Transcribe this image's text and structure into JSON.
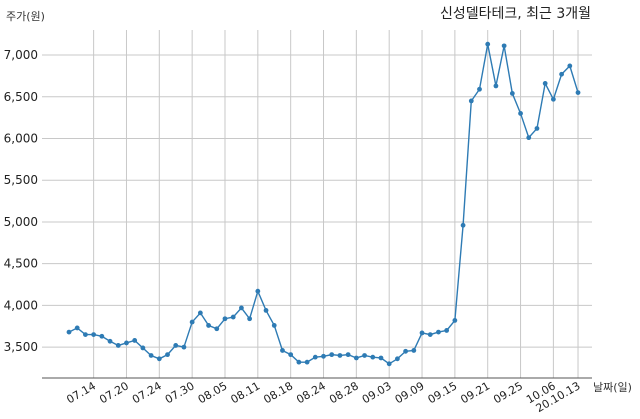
{
  "chart_data": {
    "type": "line",
    "title": "신성델타테크, 최근 3개월",
    "ylabel": "주가(원)",
    "xlabel": "날짜(일)",
    "ylim": [
      3130,
      7300
    ],
    "yticks": [
      3500,
      4000,
      4500,
      5000,
      5500,
      6000,
      6500,
      7000
    ],
    "ytick_labels": [
      "3,500",
      "4,000",
      "4,500",
      "5,000",
      "5,500",
      "6,000",
      "6,500",
      "7,000"
    ],
    "xtick_indices": [
      3,
      7,
      11,
      15,
      19,
      23,
      27,
      31,
      35,
      39,
      43,
      47,
      51,
      55,
      59
    ],
    "xtick_labels": [
      "07.14",
      "07.20",
      "07.24",
      "07.30",
      "08.05",
      "08.11",
      "08.18",
      "08.24",
      "08.28",
      "09.03",
      "09.09",
      "09.15",
      "09.21",
      "09.25",
      "10.06"
    ],
    "last_tick_label": "20.10.13",
    "grid": true,
    "color": "#2e7bb4",
    "values": [
      3680,
      3730,
      3650,
      3650,
      3630,
      3570,
      3520,
      3550,
      3580,
      3490,
      3400,
      3360,
      3410,
      3520,
      3500,
      3800,
      3910,
      3760,
      3720,
      3840,
      3860,
      3970,
      3840,
      4170,
      3940,
      3760,
      3460,
      3410,
      3320,
      3320,
      3380,
      3390,
      3410,
      3400,
      3410,
      3370,
      3400,
      3380,
      3370,
      3300,
      3360,
      3450,
      3460,
      3670,
      3650,
      3680,
      3700,
      3820,
      4960,
      6450,
      6590,
      7130,
      6630,
      7110,
      6540,
      6300,
      6010,
      6120,
      6660,
      6470,
      6770,
      6870,
      6550
    ]
  }
}
